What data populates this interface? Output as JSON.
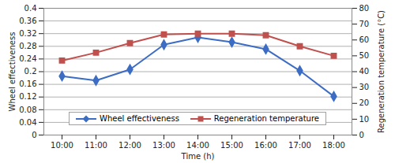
{
  "chart_data": {
    "type": "line",
    "x_label": "Time (h)",
    "y_label": "Wheel effectiveness",
    "y2_label": "Regeneration temperature (°C)",
    "categories": [
      "10:00",
      "11:00",
      "12:00",
      "13:00",
      "14:00",
      "15:00",
      "16:00",
      "17:00",
      "18:00"
    ],
    "series": [
      {
        "name": "Wheel effectiveness",
        "color": "#3c6cc4",
        "marker": "diamond",
        "values": [
          0.186,
          0.172,
          0.207,
          0.285,
          0.308,
          0.293,
          0.271,
          0.203,
          0.122
        ]
      },
      {
        "name": "Regeneration temperature",
        "color": "#c0504d",
        "marker": "square",
        "axis": "y2",
        "values": [
          47,
          52,
          58,
          63.5,
          64,
          64,
          63,
          56,
          50
        ]
      }
    ],
    "ylim": [
      0,
      0.4
    ],
    "yticks": [
      0,
      0.04,
      0.08,
      0.12,
      0.16,
      0.2,
      0.24,
      0.28,
      0.32,
      0.36,
      0.4
    ],
    "y2lim": [
      0,
      80
    ],
    "y2ticks": [
      0,
      10,
      20,
      30,
      40,
      50,
      60,
      70,
      80
    ],
    "grid": true,
    "legend": "lower center"
  }
}
